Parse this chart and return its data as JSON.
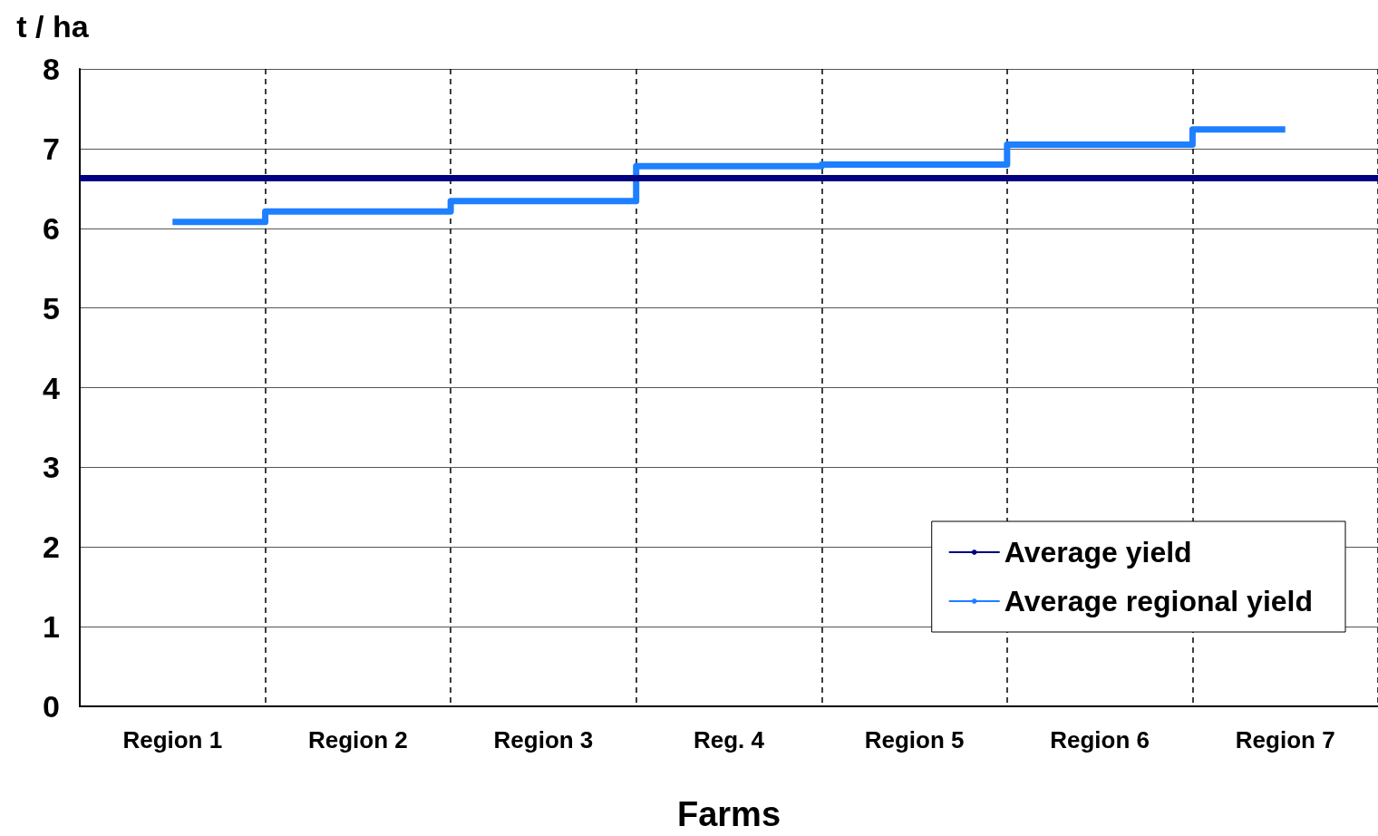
{
  "chart_data": {
    "type": "step",
    "ylabel": "t / ha",
    "xlabel": "Farms",
    "categories": [
      "Region 1",
      "Region 2",
      "Region 3",
      "Reg. 4",
      "Region 5",
      "Region 6",
      "Region 7"
    ],
    "series": [
      {
        "name": "Average regional yield",
        "color": "#1e7fff",
        "values": [
          6.08,
          6.21,
          6.34,
          6.78,
          6.8,
          7.05,
          7.24
        ]
      }
    ],
    "ref_lines": [
      {
        "axis": "y",
        "value": 6.63,
        "label": "Average yield",
        "color": "#000080"
      }
    ],
    "ylim": [
      0,
      8
    ],
    "yticks": [
      0,
      1,
      2,
      3,
      4,
      5,
      6,
      7,
      8
    ],
    "grid": true,
    "legend": "bottom right",
    "marker": "none"
  }
}
